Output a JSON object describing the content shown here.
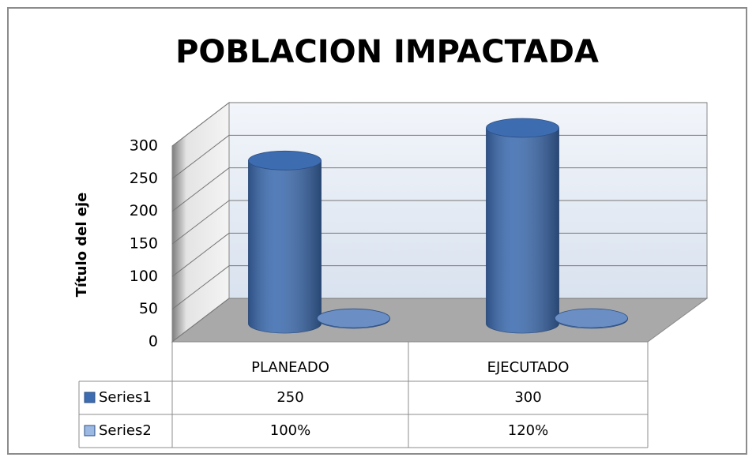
{
  "chart_data": {
    "type": "cylinder3d",
    "title": "POBLACION  IMPACTADA",
    "y_axis_title": "Título del eje",
    "categories": [
      "PLANEADO",
      "EJECUTADO"
    ],
    "series": [
      {
        "name": "Series1",
        "color": "#3d6cb0",
        "values": [
          250,
          300
        ]
      },
      {
        "name": "Series2",
        "color": "#6b8fc4",
        "values": [
          1,
          1.2
        ],
        "value_labels": [
          "100%",
          "120%"
        ]
      }
    ],
    "ylim": [
      0,
      300
    ],
    "yticks": [
      0,
      50,
      100,
      150,
      200,
      250,
      300
    ],
    "grid": true,
    "data_table": true
  }
}
